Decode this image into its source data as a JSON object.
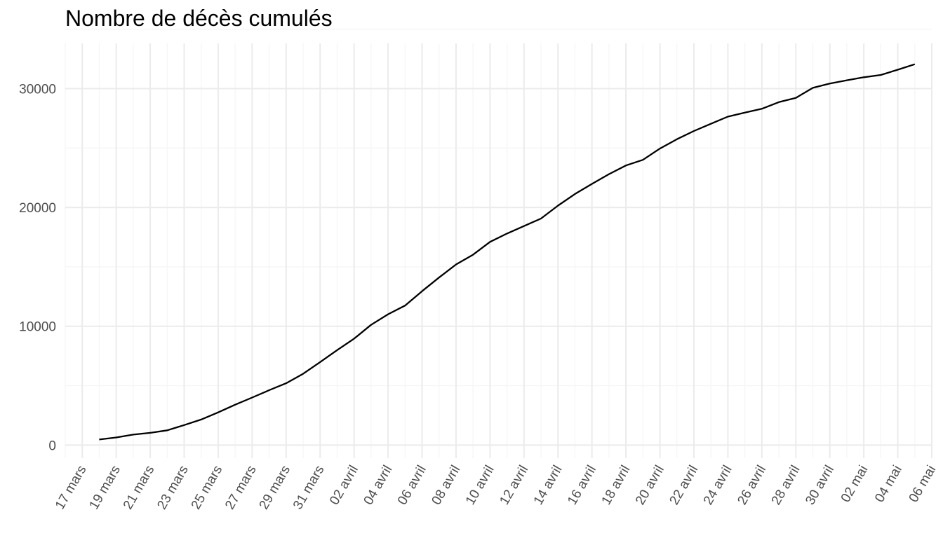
{
  "chart_data": {
    "type": "line",
    "title": "Nombre de décès cumulés",
    "xlabel": "",
    "ylabel": "",
    "grid": true,
    "colors": {
      "line": "#000000",
      "grid_major": "#ebebeb",
      "grid_minor": "#f5f5f5",
      "tick_text": "#4d4d4d"
    },
    "x_range": [
      "2020-03-16",
      "2020-05-06"
    ],
    "ylim": [
      -1100,
      33800
    ],
    "y_ticks": [
      0,
      10000,
      20000,
      30000
    ],
    "y_tick_labels": [
      "0",
      "10000",
      "20000",
      "30000"
    ],
    "x_ticks": [
      "2020-03-17",
      "2020-03-19",
      "2020-03-21",
      "2020-03-23",
      "2020-03-25",
      "2020-03-27",
      "2020-03-29",
      "2020-03-31",
      "2020-04-02",
      "2020-04-04",
      "2020-04-06",
      "2020-04-08",
      "2020-04-10",
      "2020-04-12",
      "2020-04-14",
      "2020-04-16",
      "2020-04-18",
      "2020-04-20",
      "2020-04-22",
      "2020-04-24",
      "2020-04-26",
      "2020-04-28",
      "2020-04-30",
      "2020-05-02",
      "2020-05-04",
      "2020-05-06"
    ],
    "x_tick_labels": [
      "17 mars",
      "19 mars",
      "21 mars",
      "23 mars",
      "25 mars",
      "27 mars",
      "29 mars",
      "31 mars",
      "02 avril",
      "04 avril",
      "06 avril",
      "08 avril",
      "10 avril",
      "12 avril",
      "14 avril",
      "16 avril",
      "18 avril",
      "20 avril",
      "22 avril",
      "24 avril",
      "26 avril",
      "28 avril",
      "30 avril",
      "02 mai",
      "04 mai",
      "06 mai"
    ],
    "series": [
      {
        "x": [
          "2020-03-18",
          "2020-03-19",
          "2020-03-20",
          "2020-03-21",
          "2020-03-22",
          "2020-03-23",
          "2020-03-24",
          "2020-03-25",
          "2020-03-26",
          "2020-03-27",
          "2020-03-28",
          "2020-03-29",
          "2020-03-30",
          "2020-03-31",
          "2020-04-01",
          "2020-04-02",
          "2020-04-03",
          "2020-04-04",
          "2020-04-05",
          "2020-04-06",
          "2020-04-07",
          "2020-04-08",
          "2020-04-09",
          "2020-04-10",
          "2020-04-11",
          "2020-04-12",
          "2020-04-13",
          "2020-04-14",
          "2020-04-15",
          "2020-04-16",
          "2020-04-17",
          "2020-04-18",
          "2020-04-19",
          "2020-04-20",
          "2020-04-21",
          "2020-04-22",
          "2020-04-23",
          "2020-04-24",
          "2020-04-25",
          "2020-04-26",
          "2020-04-27",
          "2020-04-28",
          "2020-04-29",
          "2020-04-30",
          "2020-05-01",
          "2020-05-02",
          "2020-05-03",
          "2020-05-04",
          "2020-05-05"
        ],
        "values": [
          470,
          640,
          880,
          1030,
          1240,
          1680,
          2150,
          2750,
          3400,
          4000,
          4620,
          5200,
          6000,
          6980,
          7990,
          8960,
          10120,
          11010,
          11740,
          12950,
          14100,
          15200,
          16020,
          17100,
          17800,
          18430,
          19060,
          20150,
          21130,
          21980,
          22800,
          23530,
          24000,
          24950,
          25740,
          26430,
          27040,
          27640,
          27980,
          28300,
          28860,
          29220,
          30060,
          30430,
          30700,
          30950,
          31150,
          31590,
          32050
        ]
      }
    ]
  }
}
